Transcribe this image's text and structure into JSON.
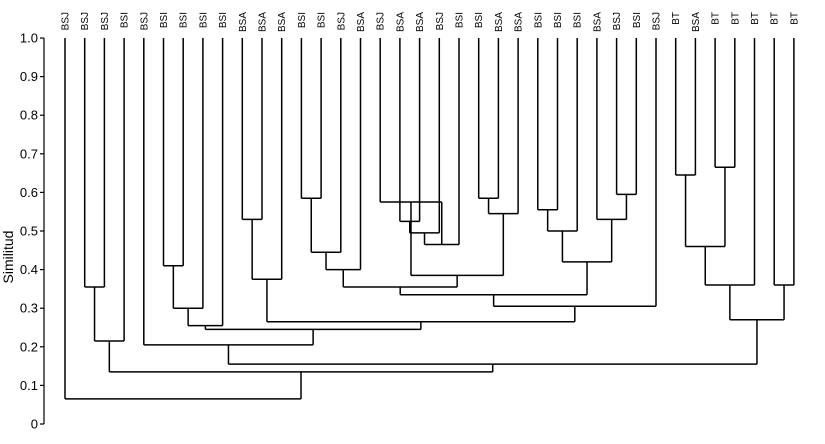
{
  "chart_data": {
    "type": "dendrogram",
    "ylabel": "Similitud",
    "ylim": [
      0,
      1.0
    ],
    "yticks": [
      "0",
      "0.1",
      "0.2",
      "0.3",
      "0.4",
      "0.5",
      "0.6",
      "0.7",
      "0.8",
      "0.9",
      "1.0"
    ],
    "leaves": [
      "BSJ",
      "BSJ",
      "BSJ",
      "BSI",
      "BSJ",
      "BSI",
      "BSI",
      "BSI",
      "BSI",
      "BSA",
      "BSA",
      "BSA",
      "BSI",
      "BSI",
      "BSJ",
      "BSA",
      "BSJ",
      "BSA",
      "BSA",
      "BSJ",
      "BSI",
      "BSI",
      "BSA",
      "BSA",
      "BSI",
      "BSI",
      "BSI",
      "BSA",
      "BSJ",
      "BSI",
      "BSJ",
      "BT",
      "BSA",
      "BT",
      "BT",
      "BT",
      "BT",
      "BT"
    ],
    "merges": [
      {
        "a": "L1",
        "b": "L2",
        "h": 0.355
      },
      {
        "a": "M0",
        "b": "L3",
        "h": 0.215
      },
      {
        "a": "L5",
        "b": "L6",
        "h": 0.41
      },
      {
        "a": "M2",
        "b": "L7",
        "h": 0.3
      },
      {
        "a": "M3",
        "b": "L8",
        "h": 0.255
      },
      {
        "a": "L9",
        "b": "L10",
        "h": 0.53
      },
      {
        "a": "M5",
        "b": "L11",
        "h": 0.375
      },
      {
        "a": "L12",
        "b": "L13",
        "h": 0.585
      },
      {
        "a": "M7",
        "b": "L14",
        "h": 0.445
      },
      {
        "a": "M8",
        "b": "L15",
        "h": 0.4
      },
      {
        "a": "L17",
        "b": "L18",
        "h": 0.525
      },
      {
        "a": "M10",
        "b": "L19",
        "h": 0.495
      },
      {
        "a": "M11",
        "b": "L20",
        "h": 0.465
      },
      {
        "a": "L16",
        "b": "M12",
        "h": 0.575
      },
      {
        "a": "L21",
        "b": "L22",
        "h": 0.585
      },
      {
        "a": "M14",
        "b": "L23",
        "h": 0.545
      },
      {
        "a": "M13",
        "b": "M15",
        "h": 0.385
      },
      {
        "a": "M9",
        "b": "M16",
        "h": 0.355
      },
      {
        "a": "L24",
        "b": "L25",
        "h": 0.555
      },
      {
        "a": "M18",
        "b": "L26",
        "h": 0.5
      },
      {
        "a": "L28",
        "b": "L29",
        "h": 0.595
      },
      {
        "a": "L27",
        "b": "M20",
        "h": 0.53
      },
      {
        "a": "M19",
        "b": "M21",
        "h": 0.42
      },
      {
        "a": "M17",
        "b": "M22",
        "h": 0.335
      },
      {
        "a": "M23",
        "b": "L30",
        "h": 0.305
      },
      {
        "a": "M6",
        "b": "M24",
        "h": 0.265
      },
      {
        "a": "M4",
        "b": "M25",
        "h": 0.245
      },
      {
        "a": "L4",
        "b": "M26",
        "h": 0.205
      },
      {
        "a": "L31",
        "b": "L32",
        "h": 0.645
      },
      {
        "a": "L33",
        "b": "L34",
        "h": 0.665
      },
      {
        "a": "M28",
        "b": "M29",
        "h": 0.46
      },
      {
        "a": "M30",
        "b": "L35",
        "h": 0.36
      },
      {
        "a": "L36",
        "b": "L37",
        "h": 0.36
      },
      {
        "a": "M31",
        "b": "M32",
        "h": 0.27
      },
      {
        "a": "M27",
        "b": "M33",
        "h": 0.155
      },
      {
        "a": "M1",
        "b": "M34",
        "h": 0.135
      },
      {
        "a": "L0",
        "b": "M35",
        "h": 0.065
      }
    ]
  }
}
